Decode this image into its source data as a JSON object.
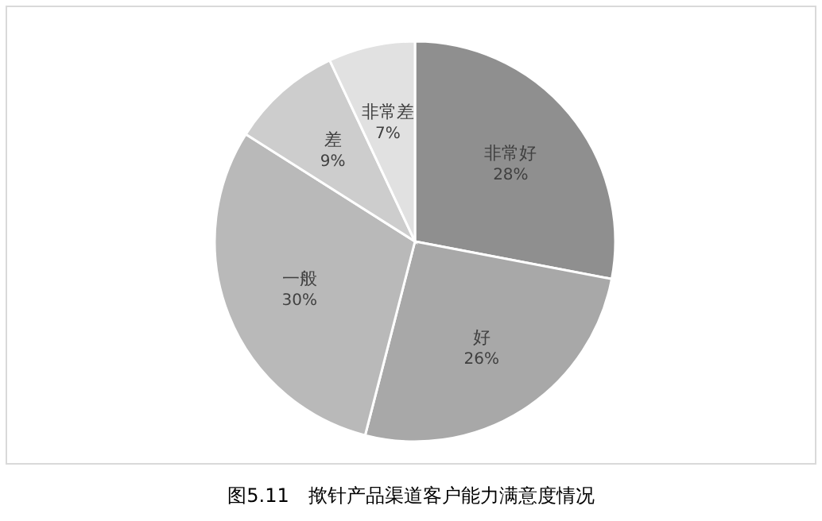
{
  "chart_data": {
    "type": "pie",
    "title": "图5.11　揿针产品渠道客户能力满意度情况",
    "categories": [
      "非常好",
      "好",
      "一般",
      "差",
      "非常差"
    ],
    "values": [
      28,
      26,
      30,
      9,
      7
    ],
    "colors": [
      "#8f8f8f",
      "#a8a8a8",
      "#b9b9b9",
      "#cdcdcd",
      "#e1e1e1"
    ],
    "value_labels": [
      "28%",
      "26%",
      "30%",
      "9%",
      "7%"
    ]
  }
}
